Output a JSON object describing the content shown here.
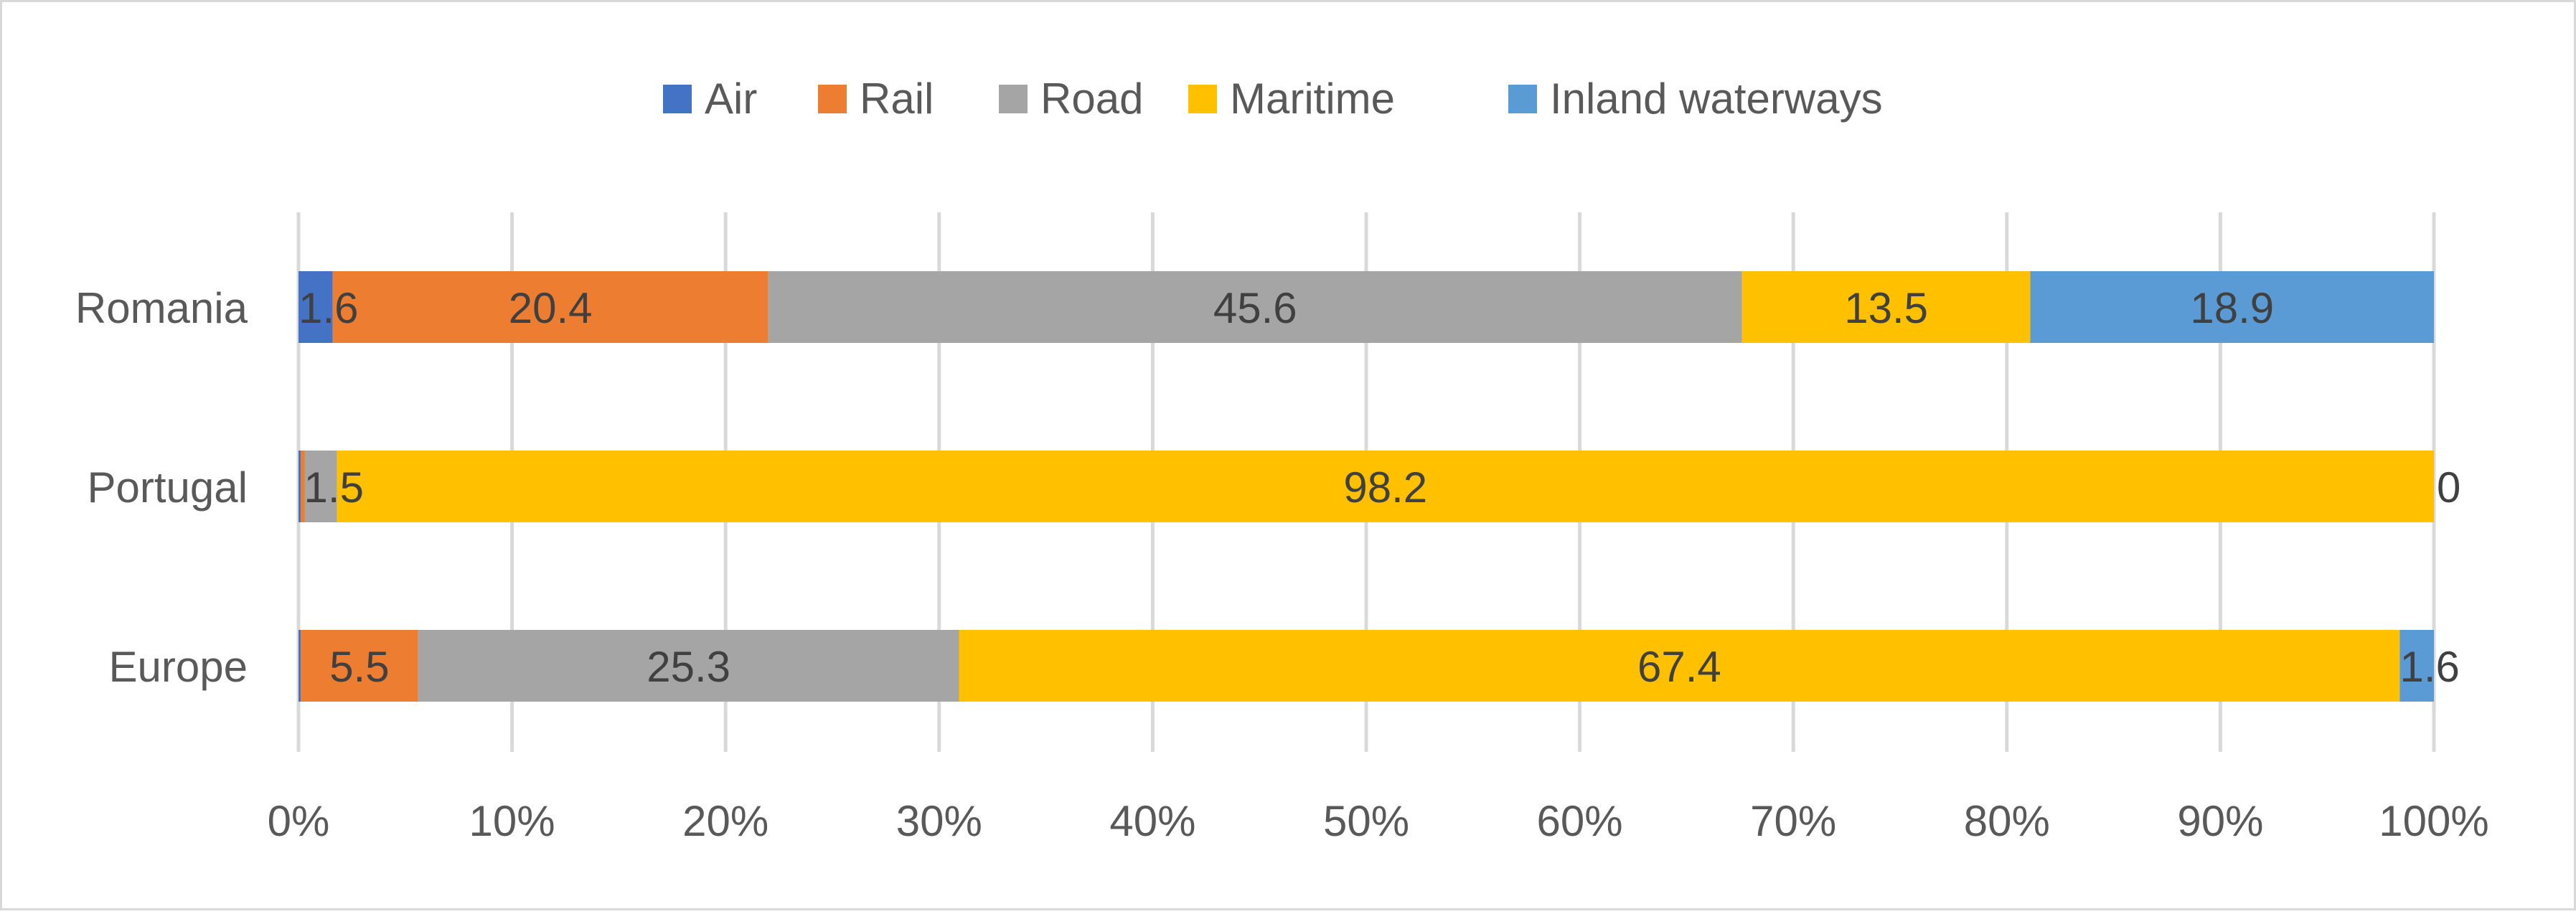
{
  "chart_data": {
    "type": "bar",
    "orientation": "horizontal",
    "stacked": "percent",
    "title": "",
    "xlabel": "",
    "ylabel": "",
    "xlim": [
      0,
      100
    ],
    "x_ticks": [
      "0%",
      "10%",
      "20%",
      "30%",
      "40%",
      "50%",
      "60%",
      "70%",
      "80%",
      "90%",
      "100%"
    ],
    "grid": true,
    "legend_position": "top-center",
    "categories": [
      "Romania",
      "Portugal",
      "Europe"
    ],
    "series": [
      {
        "name": "Air",
        "color": "#4472c4",
        "values": [
          1.6,
          0.1,
          0.1
        ],
        "labels": [
          "1.6",
          "",
          ""
        ]
      },
      {
        "name": "Rail",
        "color": "#ed7d31",
        "values": [
          20.4,
          0.2,
          5.5
        ],
        "labels": [
          "20.4",
          "",
          "5.5"
        ]
      },
      {
        "name": "Road",
        "color": "#a5a5a5",
        "values": [
          45.6,
          1.5,
          25.3
        ],
        "labels": [
          "45.6",
          "1.5",
          "25.3"
        ]
      },
      {
        "name": "Maritime",
        "color": "#ffc000",
        "values": [
          13.5,
          98.2,
          67.4
        ],
        "labels": [
          "13.5",
          "98.2",
          "67.4"
        ]
      },
      {
        "name": "Inland waterways",
        "color": "#5b9bd5",
        "values": [
          18.9,
          0,
          1.6
        ],
        "labels": [
          "18.9",
          "0",
          "1.6"
        ]
      }
    ]
  }
}
